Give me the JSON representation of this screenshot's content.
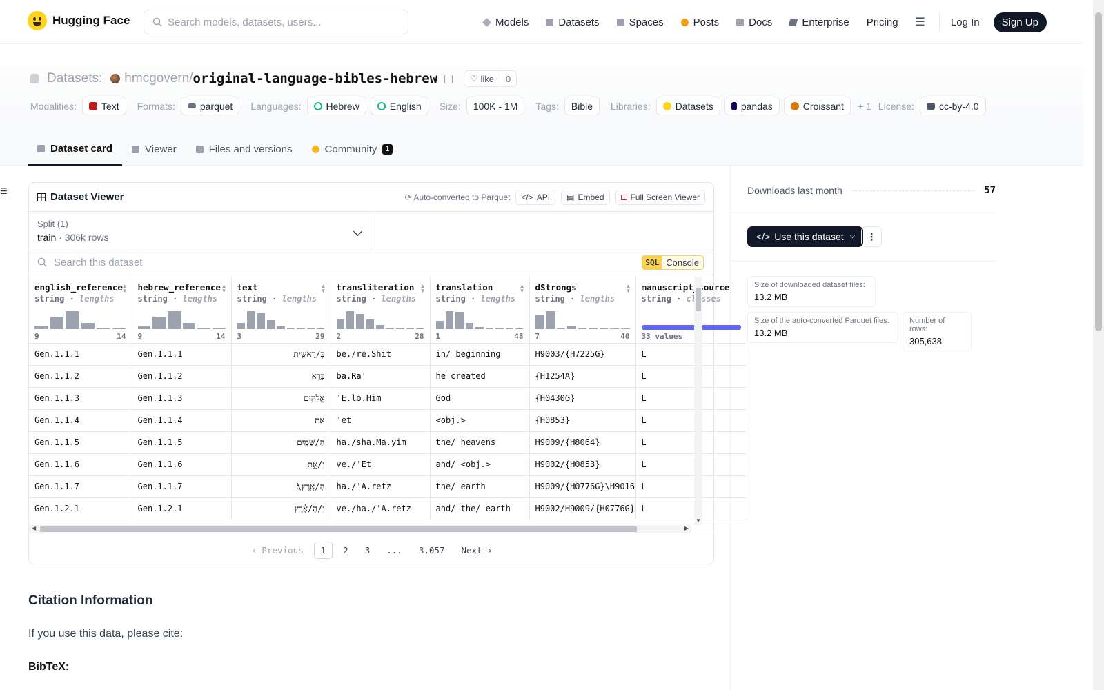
{
  "nav": {
    "brand": "Hugging Face",
    "search_placeholder": "Search models, datasets, users...",
    "links": [
      "Models",
      "Datasets",
      "Spaces",
      "Posts",
      "Docs",
      "Enterprise",
      "Pricing"
    ],
    "login": "Log In",
    "signup": "Sign Up"
  },
  "header": {
    "section": "Datasets:",
    "owner": "hmcgovern",
    "slash": "/",
    "name": "original-language-bibles-hebrew",
    "like_label": "like",
    "like_count": "0",
    "tags": {
      "modalities_label": "Modalities:",
      "modalities": "Text",
      "formats_label": "Formats:",
      "formats": "parquet",
      "languages_label": "Languages:",
      "lang1": "Hebrew",
      "lang2": "English",
      "size_label": "Size:",
      "size": "100K - 1M",
      "tags_label": "Tags:",
      "tag1": "Bible",
      "libraries_label": "Libraries:",
      "lib1": "Datasets",
      "lib2": "pandas",
      "lib3": "Croissant",
      "more": "+ 1",
      "license_label": "License:",
      "license": "cc-by-4.0"
    },
    "tabs": [
      "Dataset card",
      "Viewer",
      "Files and versions",
      "Community"
    ],
    "community_count": "1"
  },
  "viewer": {
    "title": "Dataset Viewer",
    "auto_converted": "Auto-converted",
    "to_parquet": "to Parquet",
    "api": "API",
    "embed": "Embed",
    "full_screen": "Full Screen Viewer",
    "split_label": "Split (1)",
    "split_name": "train",
    "split_dot": "·",
    "split_rows": "306k rows",
    "search_placeholder": "Search this dataset",
    "sql": "SQL",
    "console": "Console",
    "columns": [
      {
        "name": "english_reference",
        "type": "string",
        "sub": "lengths",
        "min": "9",
        "max": "14",
        "hist": [
          0.15,
          0.7,
          1.0,
          0.35,
          0.05,
          0.05
        ]
      },
      {
        "name": "hebrew_reference",
        "type": "string",
        "sub": "lengths",
        "min": "9",
        "max": "14",
        "hist": [
          0.15,
          0.7,
          1.0,
          0.35,
          0.05,
          0.05
        ]
      },
      {
        "name": "text",
        "type": "string",
        "sub": "lengths",
        "min": "3",
        "max": "29",
        "hist": [
          0.35,
          1.0,
          0.9,
          0.5,
          0.15,
          0.05,
          0.05,
          0.05,
          0.05
        ]
      },
      {
        "name": "transliteration",
        "type": "string",
        "sub": "lengths",
        "min": "2",
        "max": "28",
        "hist": [
          0.55,
          1.0,
          0.85,
          0.55,
          0.25,
          0.08,
          0.05,
          0.05,
          0.05
        ]
      },
      {
        "name": "translation",
        "type": "string",
        "sub": "lengths",
        "min": "1",
        "max": "48",
        "hist": [
          0.45,
          1.0,
          0.95,
          0.35,
          0.1,
          0.05,
          0.05,
          0.05,
          0.05
        ]
      },
      {
        "name": "dStrongs",
        "type": "string",
        "sub": "lengths",
        "min": "7",
        "max": "40",
        "hist": [
          0.8,
          1.0,
          0.05,
          0.2,
          0.05,
          0.05,
          0.05,
          0.05,
          0.05
        ]
      },
      {
        "name": "manuscript_source",
        "type": "string",
        "sub": "classes",
        "note": "33 values"
      }
    ],
    "rows": [
      [
        "Gen.1.1.1",
        "Gen.1.1.1",
        "בְּ/רֵאשִׁ֖ית",
        "be./re.Shit",
        "in/ beginning",
        "H9003/{H7225G}",
        "L"
      ],
      [
        "Gen.1.1.2",
        "Gen.1.1.2",
        "בָּרָ֣א",
        "ba.Ra'",
        "he created",
        "{H1254A}",
        "L"
      ],
      [
        "Gen.1.1.3",
        "Gen.1.1.3",
        "אֱלֹהִ֑ים",
        "'E.lo.Him",
        "God",
        "{H0430G}",
        "L"
      ],
      [
        "Gen.1.1.4",
        "Gen.1.1.4",
        "אֵ֥ת",
        "'et",
        "<obj.>",
        "{H0853}",
        "L"
      ],
      [
        "Gen.1.1.5",
        "Gen.1.1.5",
        "הַ/שָּׁמַ֖יִם",
        "ha./sha.Ma.yim",
        "the/ heavens",
        "H9009/{H8064}",
        "L"
      ],
      [
        "Gen.1.1.6",
        "Gen.1.1.6",
        "וְ/אֵ֥ת",
        "ve./'Et",
        "and/ <obj.>",
        "H9002/{H0853}",
        "L"
      ],
      [
        "Gen.1.1.7",
        "Gen.1.1.7",
        "הָ/אָֽרֶץ\\׃",
        "ha./'A.retz",
        "the/ earth",
        "H9009/{H0776G}\\H9016",
        "L"
      ],
      [
        "Gen.1.2.1",
        "Gen.1.2.1",
        "וְ/הָ/אָ֗רֶץ",
        "ve./ha./'A.retz",
        "and/ the/ earth",
        "H9002/H9009/{H0776G}",
        "L"
      ]
    ],
    "pager": {
      "prev": "Previous",
      "pages": [
        "1",
        "2",
        "3",
        "...",
        "3,057"
      ],
      "next": "Next"
    }
  },
  "card": {
    "citation_heading": "Citation Information",
    "citation_text": "If you use this data, please cite:",
    "bibtex": "BibTeX:"
  },
  "sidebar": {
    "downloads_label": "Downloads last month",
    "downloads_value": "57",
    "use_dataset": "Use this dataset",
    "size_dl_label": "Size of downloaded dataset files:",
    "size_dl_value": "13.2 MB",
    "size_parquet_label": "Size of the auto-converted Parquet files:",
    "size_parquet_value": "13.2 MB",
    "rows_label": "Number of rows:",
    "rows_value": "305,638"
  }
}
